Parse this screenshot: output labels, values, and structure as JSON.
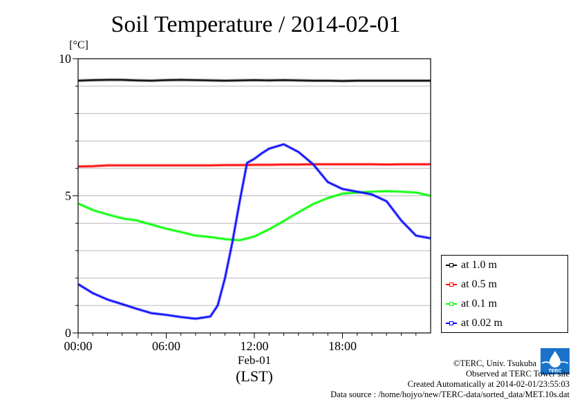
{
  "chart_data": {
    "type": "line",
    "title": "Soil Temperature / 2014-02-01",
    "ylabel": "[°C]",
    "xlabel": "(LST)",
    "date_label": "Feb-01",
    "xlim": [
      0,
      24
    ],
    "ylim": [
      0,
      10
    ],
    "x_ticks": [
      0,
      6,
      12,
      18
    ],
    "x_tick_labels": [
      "00:00",
      "06:00",
      "12:00",
      "18:00"
    ],
    "y_ticks": [
      0,
      5,
      10
    ],
    "y_tick_labels": [
      "0",
      "5",
      "10"
    ],
    "grid": true,
    "legend_position": "right",
    "series": [
      {
        "name": "at 1.0 m",
        "color": "#000000",
        "x": [
          0,
          1,
          2,
          3,
          4,
          5,
          6,
          7,
          8,
          9,
          10,
          11,
          12,
          13,
          14,
          15,
          16,
          17,
          18,
          19,
          20,
          21,
          22,
          23,
          24
        ],
        "y": [
          9.2,
          9.22,
          9.23,
          9.23,
          9.21,
          9.2,
          9.22,
          9.23,
          9.22,
          9.21,
          9.2,
          9.21,
          9.22,
          9.21,
          9.22,
          9.21,
          9.2,
          9.2,
          9.19,
          9.2,
          9.2,
          9.2,
          9.2,
          9.2,
          9.2
        ]
      },
      {
        "name": "at 0.5 m",
        "color": "#ff0000",
        "x": [
          0,
          1,
          2,
          3,
          4,
          5,
          6,
          7,
          8,
          9,
          10,
          11,
          12,
          13,
          14,
          15,
          16,
          17,
          18,
          19,
          20,
          21,
          22,
          23,
          24
        ],
        "y": [
          6.07,
          6.08,
          6.11,
          6.11,
          6.11,
          6.11,
          6.11,
          6.11,
          6.11,
          6.11,
          6.12,
          6.12,
          6.13,
          6.13,
          6.14,
          6.14,
          6.15,
          6.15,
          6.15,
          6.15,
          6.15,
          6.14,
          6.15,
          6.15,
          6.15
        ]
      },
      {
        "name": "at 0.1 m",
        "color": "#00ff00",
        "x": [
          0,
          1,
          2,
          3,
          4,
          5,
          6,
          7,
          8,
          9,
          10,
          11,
          12,
          13,
          14,
          15,
          16,
          17,
          18,
          19,
          20,
          21,
          22,
          23,
          24
        ],
        "y": [
          4.72,
          4.48,
          4.32,
          4.18,
          4.1,
          3.95,
          3.8,
          3.68,
          3.55,
          3.5,
          3.42,
          3.38,
          3.52,
          3.78,
          4.08,
          4.4,
          4.7,
          4.92,
          5.08,
          5.12,
          5.15,
          5.17,
          5.15,
          5.12,
          5.0
        ]
      },
      {
        "name": "at 0.02 m",
        "color": "#0000ff",
        "x": [
          0,
          1,
          2,
          3,
          4,
          5,
          6,
          7,
          8,
          9,
          9.5,
          10,
          10.5,
          11,
          11.5,
          12,
          12.5,
          13,
          14,
          15,
          16,
          17,
          18,
          19,
          20,
          21,
          22,
          23,
          24
        ],
        "y": [
          1.78,
          1.45,
          1.22,
          1.05,
          0.88,
          0.72,
          0.66,
          0.58,
          0.52,
          0.6,
          1.0,
          2.0,
          3.3,
          4.8,
          6.2,
          6.35,
          6.55,
          6.72,
          6.88,
          6.6,
          6.15,
          5.5,
          5.25,
          5.15,
          5.05,
          4.8,
          4.1,
          3.55,
          3.45
        ]
      }
    ]
  },
  "credits": {
    "copyright": "©TERC, Univ. Tsukuba",
    "observed": "Observed at TERC Tower site",
    "created": "Created Automatically at 2014-02-01/23:55:03",
    "source": "Data source : /home/hojyo/new/TERC-data/sorted_data/MET.10s.dat"
  },
  "logo": {
    "icon": "terc-logo-icon",
    "text": "TERC",
    "color": "#1a73c9"
  }
}
